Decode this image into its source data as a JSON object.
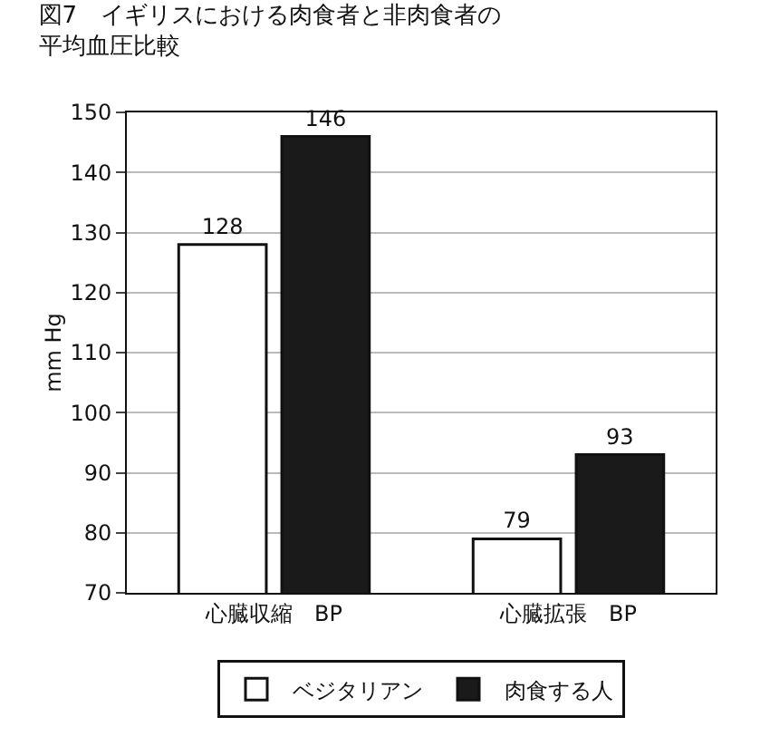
{
  "chart_data": {
    "type": "bar",
    "title": "図7　イギリスにおける肉食者と非肉食者の平均血圧比較",
    "ylabel": "mm Hg",
    "categories": [
      "心臓収縮　BP",
      "心臓拡張　BP"
    ],
    "series": [
      {
        "name": "ベジタリアン",
        "color": "#ffffff",
        "values": [
          128,
          79
        ]
      },
      {
        "name": "肉食する人",
        "color": "#1a1a1a",
        "values": [
          146,
          93
        ]
      }
    ],
    "ylim": [
      70,
      150
    ],
    "yticks": [
      70,
      80,
      90,
      100,
      110,
      120,
      130,
      140,
      150
    ],
    "grid": "y",
    "legend": "bottom",
    "data_labels": true
  }
}
